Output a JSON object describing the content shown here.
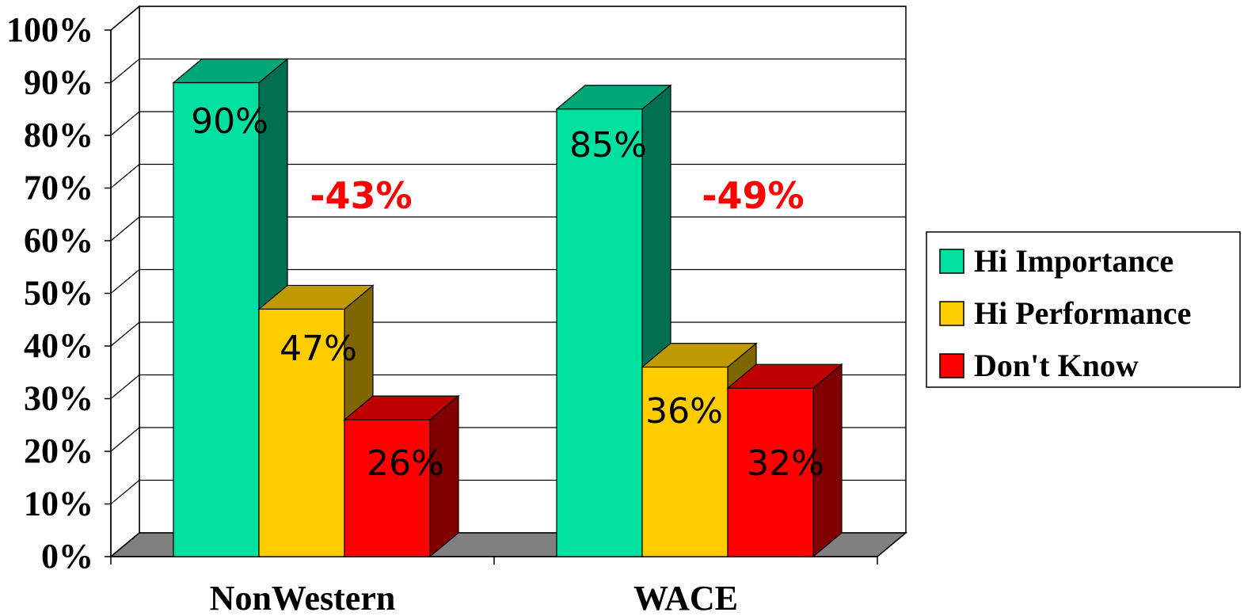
{
  "chart_data": {
    "type": "bar",
    "categories": [
      "NonWestern",
      "WACE"
    ],
    "series": [
      {
        "name": "Hi Importance",
        "values": [
          90,
          85
        ],
        "color": "#00e0a0",
        "labels": [
          "90%",
          "85%"
        ]
      },
      {
        "name": "Hi Performance",
        "values": [
          47,
          36
        ],
        "color": "#ffcc00",
        "labels": [
          "47%",
          "36%"
        ]
      },
      {
        "name": "Don't Know",
        "values": [
          26,
          32
        ],
        "color": "#ff0000",
        "labels": [
          "26%",
          "32%"
        ]
      }
    ],
    "ylim": [
      0,
      100
    ],
    "yticks": [
      "0%",
      "10%",
      "20%",
      "30%",
      "40%",
      "50%",
      "60%",
      "70%",
      "80%",
      "90%",
      "100%"
    ],
    "annotations": [
      "-43%",
      "-49%"
    ],
    "annotation_color": "#ff0000",
    "legend_position": "right",
    "grid": true,
    "style": "3d-bar"
  }
}
